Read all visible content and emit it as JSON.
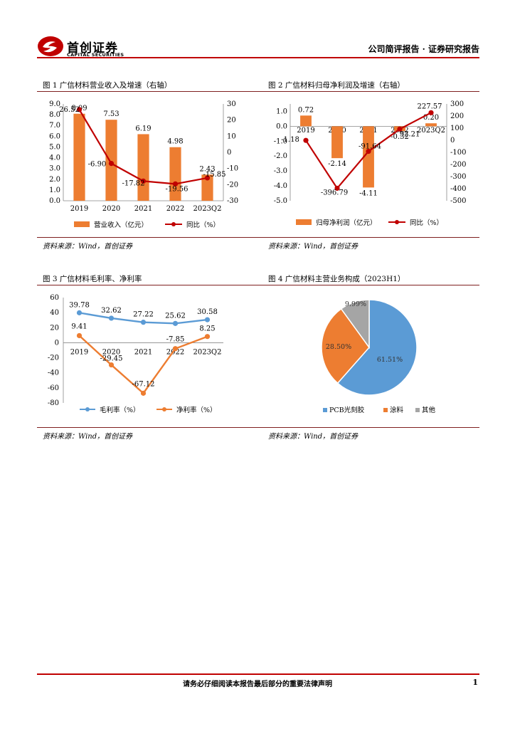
{
  "header": {
    "logo_cn": "首创证券",
    "logo_en": "CAPITAL SECURITIES",
    "report_type": "公司简评报告 · 证券研究报告"
  },
  "figures": [
    {
      "title": "图 1  广信材料营业收入及增速（右轴）",
      "source": "资料来源：Wind，首创证券"
    },
    {
      "title": "图 2  广信材料归母净利润及增速（右轴）",
      "source": "资料来源：Wind，首创证券"
    },
    {
      "title": "图 3  广信材料毛利率、净利率",
      "source": "资料来源：Wind，首创证券"
    },
    {
      "title": "图 4  广信材料主营业务构成（2023H1）",
      "source": "资料来源：Wind，首创证券"
    }
  ],
  "footer": {
    "disclaimer": "请务必仔细阅读本报告最后部分的重要法律声明",
    "page": "1"
  },
  "colors": {
    "brand_red": "#c00000",
    "orange": "#ed7d31",
    "dark_red": "#c00000",
    "blue": "#5b9bd5",
    "gray": "#a5a5a5"
  },
  "chart_data": [
    {
      "type": "bar",
      "categories": [
        "2019",
        "2020",
        "2021",
        "2022",
        "2023Q2"
      ],
      "series": [
        {
          "name": "营业收入（亿元）",
          "type": "bar",
          "axis": "left",
          "values": [
            8.09,
            7.53,
            6.19,
            4.98,
            2.43
          ],
          "labels": [
            "8.09",
            "7.53",
            "6.19",
            "4.98",
            "2.43"
          ]
        },
        {
          "name": "同比（%）",
          "type": "line",
          "axis": "right",
          "values": [
            26.52,
            -6.9,
            -17.82,
            -19.56,
            -15.85
          ],
          "labels": [
            "26.52",
            "-6.90",
            "-17.82",
            "-19.56",
            "-15.85"
          ]
        }
      ],
      "ylim_left": [
        0,
        9
      ],
      "ylim_right": [
        -30,
        30
      ],
      "yticks_left": [
        "0.0",
        "1.0",
        "2.0",
        "3.0",
        "4.0",
        "5.0",
        "6.0",
        "7.0",
        "8.0",
        "9.0"
      ],
      "yticks_right": [
        "-30",
        "-20",
        "-10",
        "0",
        "10",
        "20",
        "30"
      ],
      "legend": "bottom"
    },
    {
      "type": "bar",
      "categories": [
        "2019",
        "2020",
        "2021",
        "2022",
        "2023Q2"
      ],
      "series": [
        {
          "name": "归母净利润（亿元）",
          "type": "bar",
          "axis": "left",
          "values": [
            0.72,
            -2.14,
            -4.11,
            -0.32,
            0.2
          ],
          "labels": [
            "0.72",
            "-2.14",
            "-4.11",
            "-0.32",
            "0.20"
          ]
        },
        {
          "name": "同比（%）",
          "type": "line",
          "axis": "right",
          "values": [
            -1.18,
            -396.79,
            -91.64,
            92.21,
            227.57
          ],
          "labels": [
            "-1.18",
            "-396.79",
            "-91.64",
            "92.21",
            "227.57"
          ]
        }
      ],
      "ylim_left": [
        -5,
        1.5
      ],
      "ylim_right": [
        -500,
        300
      ],
      "yticks_left": [
        "-5.0",
        "-4.0",
        "-3.0",
        "-2.0",
        "-1.0",
        "0.0",
        "1.0"
      ],
      "yticks_right": [
        "-500",
        "-400",
        "-300",
        "-200",
        "-100",
        "0",
        "100",
        "200",
        "300"
      ],
      "legend": "bottom"
    },
    {
      "type": "line",
      "categories": [
        "2019",
        "2020",
        "2021",
        "2022",
        "2023Q2"
      ],
      "series": [
        {
          "name": "毛利率（%）",
          "values": [
            39.78,
            32.62,
            27.22,
            25.62,
            30.58
          ],
          "labels": [
            "39.78",
            "32.62",
            "27.22",
            "25.62",
            "30.58"
          ]
        },
        {
          "name": "净利率（%）",
          "values": [
            9.41,
            -29.45,
            -67.12,
            -7.85,
            8.25
          ],
          "labels": [
            "9.41",
            "-29.45",
            "-67.12",
            "-7.85",
            "8.25"
          ]
        }
      ],
      "ylim": [
        -80,
        60
      ],
      "yticks": [
        "-80",
        "-60",
        "-40",
        "-20",
        "0",
        "20",
        "40",
        "60"
      ],
      "legend": "bottom"
    },
    {
      "type": "pie",
      "slices": [
        {
          "name": "PCB光刻胶",
          "value": 61.51,
          "label": "61.51%"
        },
        {
          "name": "涂料",
          "value": 28.5,
          "label": "28.50%"
        },
        {
          "name": "其他",
          "value": 9.99,
          "label": "9.99%"
        }
      ],
      "legend": "bottom"
    }
  ]
}
